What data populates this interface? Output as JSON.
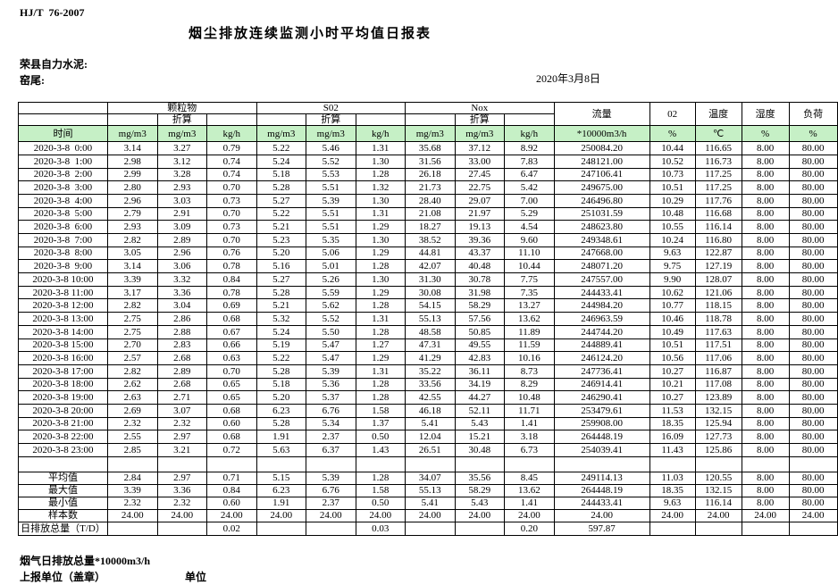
{
  "page": {
    "standard": "HJ/T  76-2007",
    "title": "烟尘排放连续监测小时平均值日报表",
    "company": "荣县自力水泥:",
    "location": "窑尾:",
    "date": "2020年3月8日"
  },
  "colors": {
    "header_row_green": "#c6f0c6",
    "border": "#000000",
    "background": "#ffffff"
  },
  "table": {
    "header": {
      "time": "时间",
      "groups": [
        {
          "label": "颗粒物",
          "sub": "折算"
        },
        {
          "label": "S02",
          "sub": "折算"
        },
        {
          "label": "Nox",
          "sub": "折算"
        }
      ],
      "singles": [
        {
          "label": "流量"
        },
        {
          "label": "02"
        },
        {
          "label": "温度"
        },
        {
          "label": "湿度"
        },
        {
          "label": "负荷"
        }
      ],
      "units": [
        "mg/m3",
        "mg/m3",
        "kg/h",
        "mg/m3",
        "mg/m3",
        "kg/h",
        "mg/m3",
        "mg/m3",
        "kg/h",
        "*10000m3/h",
        "%",
        "℃",
        "%",
        "%"
      ]
    },
    "rows": [
      {
        "time": "2020-3-8  0:00",
        "values": [
          "3.14",
          "3.27",
          "0.79",
          "5.22",
          "5.46",
          "1.31",
          "35.68",
          "37.12",
          "8.92",
          "250084.20",
          "10.44",
          "116.65",
          "8.00",
          "80.00"
        ]
      },
      {
        "time": "2020-3-8  1:00",
        "values": [
          "2.98",
          "3.12",
          "0.74",
          "5.24",
          "5.52",
          "1.30",
          "31.56",
          "33.00",
          "7.83",
          "248121.00",
          "10.52",
          "116.73",
          "8.00",
          "80.00"
        ]
      },
      {
        "time": "2020-3-8  2:00",
        "values": [
          "2.99",
          "3.28",
          "0.74",
          "5.18",
          "5.53",
          "1.28",
          "26.18",
          "27.45",
          "6.47",
          "247106.41",
          "10.73",
          "117.25",
          "8.00",
          "80.00"
        ]
      },
      {
        "time": "2020-3-8  3:00",
        "values": [
          "2.80",
          "2.93",
          "0.70",
          "5.28",
          "5.51",
          "1.32",
          "21.73",
          "22.75",
          "5.42",
          "249675.00",
          "10.51",
          "117.25",
          "8.00",
          "80.00"
        ]
      },
      {
        "time": "2020-3-8  4:00",
        "values": [
          "2.96",
          "3.03",
          "0.73",
          "5.27",
          "5.39",
          "1.30",
          "28.40",
          "29.07",
          "7.00",
          "246496.80",
          "10.29",
          "117.76",
          "8.00",
          "80.00"
        ]
      },
      {
        "time": "2020-3-8  5:00",
        "values": [
          "2.79",
          "2.91",
          "0.70",
          "5.22",
          "5.51",
          "1.31",
          "21.08",
          "21.97",
          "5.29",
          "251031.59",
          "10.48",
          "116.68",
          "8.00",
          "80.00"
        ]
      },
      {
        "time": "2020-3-8  6:00",
        "values": [
          "2.93",
          "3.09",
          "0.73",
          "5.21",
          "5.51",
          "1.29",
          "18.27",
          "19.13",
          "4.54",
          "248623.80",
          "10.55",
          "116.14",
          "8.00",
          "80.00"
        ]
      },
      {
        "time": "2020-3-8  7:00",
        "values": [
          "2.82",
          "2.89",
          "0.70",
          "5.23",
          "5.35",
          "1.30",
          "38.52",
          "39.36",
          "9.60",
          "249348.61",
          "10.24",
          "116.80",
          "8.00",
          "80.00"
        ]
      },
      {
        "time": "2020-3-8  8:00",
        "values": [
          "3.05",
          "2.96",
          "0.76",
          "5.20",
          "5.06",
          "1.29",
          "44.81",
          "43.37",
          "11.10",
          "247668.00",
          "9.63",
          "122.87",
          "8.00",
          "80.00"
        ]
      },
      {
        "time": "2020-3-8  9:00",
        "values": [
          "3.14",
          "3.06",
          "0.78",
          "5.16",
          "5.01",
          "1.28",
          "42.07",
          "40.48",
          "10.44",
          "248071.20",
          "9.75",
          "127.19",
          "8.00",
          "80.00"
        ]
      },
      {
        "time": "2020-3-8 10:00",
        "values": [
          "3.39",
          "3.32",
          "0.84",
          "5.27",
          "5.26",
          "1.30",
          "31.30",
          "30.78",
          "7.75",
          "247557.00",
          "9.90",
          "128.07",
          "8.00",
          "80.00"
        ]
      },
      {
        "time": "2020-3-8 11:00",
        "values": [
          "3.17",
          "3.36",
          "0.78",
          "5.28",
          "5.59",
          "1.29",
          "30.08",
          "31.98",
          "7.35",
          "244433.41",
          "10.62",
          "121.06",
          "8.00",
          "80.00"
        ]
      },
      {
        "time": "2020-3-8 12:00",
        "values": [
          "2.82",
          "3.04",
          "0.69",
          "5.21",
          "5.62",
          "1.28",
          "54.15",
          "58.29",
          "13.27",
          "244984.20",
          "10.77",
          "118.15",
          "8.00",
          "80.00"
        ]
      },
      {
        "time": "2020-3-8 13:00",
        "values": [
          "2.75",
          "2.86",
          "0.68",
          "5.32",
          "5.52",
          "1.31",
          "55.13",
          "57.56",
          "13.62",
          "246963.59",
          "10.46",
          "118.78",
          "8.00",
          "80.00"
        ]
      },
      {
        "time": "2020-3-8 14:00",
        "values": [
          "2.75",
          "2.88",
          "0.67",
          "5.24",
          "5.50",
          "1.28",
          "48.58",
          "50.85",
          "11.89",
          "244744.20",
          "10.49",
          "117.63",
          "8.00",
          "80.00"
        ]
      },
      {
        "time": "2020-3-8 15:00",
        "values": [
          "2.70",
          "2.83",
          "0.66",
          "5.19",
          "5.47",
          "1.27",
          "47.31",
          "49.55",
          "11.59",
          "244889.41",
          "10.51",
          "117.51",
          "8.00",
          "80.00"
        ]
      },
      {
        "time": "2020-3-8 16:00",
        "values": [
          "2.57",
          "2.68",
          "0.63",
          "5.22",
          "5.47",
          "1.29",
          "41.29",
          "42.83",
          "10.16",
          "246124.20",
          "10.56",
          "117.06",
          "8.00",
          "80.00"
        ]
      },
      {
        "time": "2020-3-8 17:00",
        "values": [
          "2.82",
          "2.89",
          "0.70",
          "5.28",
          "5.39",
          "1.31",
          "35.22",
          "36.11",
          "8.73",
          "247736.41",
          "10.27",
          "116.87",
          "8.00",
          "80.00"
        ]
      },
      {
        "time": "2020-3-8 18:00",
        "values": [
          "2.62",
          "2.68",
          "0.65",
          "5.18",
          "5.36",
          "1.28",
          "33.56",
          "34.19",
          "8.29",
          "246914.41",
          "10.21",
          "117.08",
          "8.00",
          "80.00"
        ]
      },
      {
        "time": "2020-3-8 19:00",
        "values": [
          "2.63",
          "2.71",
          "0.65",
          "5.20",
          "5.37",
          "1.28",
          "42.55",
          "44.27",
          "10.48",
          "246290.41",
          "10.27",
          "123.89",
          "8.00",
          "80.00"
        ]
      },
      {
        "time": "2020-3-8 20:00",
        "values": [
          "2.69",
          "3.07",
          "0.68",
          "6.23",
          "6.76",
          "1.58",
          "46.18",
          "52.11",
          "11.71",
          "253479.61",
          "11.53",
          "132.15",
          "8.00",
          "80.00"
        ]
      },
      {
        "time": "2020-3-8 21:00",
        "values": [
          "2.32",
          "2.32",
          "0.60",
          "5.28",
          "5.34",
          "1.37",
          "5.41",
          "5.43",
          "1.41",
          "259908.00",
          "18.35",
          "125.94",
          "8.00",
          "80.00"
        ]
      },
      {
        "time": "2020-3-8 22:00",
        "values": [
          "2.55",
          "2.97",
          "0.68",
          "1.91",
          "2.37",
          "0.50",
          "12.04",
          "15.21",
          "3.18",
          "264448.19",
          "16.09",
          "127.73",
          "8.00",
          "80.00"
        ]
      },
      {
        "time": "2020-3-8 23:00",
        "values": [
          "2.85",
          "3.21",
          "0.72",
          "5.63",
          "6.37",
          "1.43",
          "26.51",
          "30.48",
          "6.73",
          "254039.41",
          "11.43",
          "125.86",
          "8.00",
          "80.00"
        ]
      }
    ],
    "summary": [
      {
        "label": "平均值",
        "values": [
          "2.84",
          "2.97",
          "0.71",
          "5.15",
          "5.39",
          "1.28",
          "34.07",
          "35.56",
          "8.45",
          "249114.13",
          "11.03",
          "120.55",
          "8.00",
          "80.00"
        ]
      },
      {
        "label": "最大值",
        "values": [
          "3.39",
          "3.36",
          "0.84",
          "6.23",
          "6.76",
          "1.58",
          "55.13",
          "58.29",
          "13.62",
          "264448.19",
          "18.35",
          "132.15",
          "8.00",
          "80.00"
        ]
      },
      {
        "label": "最小值",
        "values": [
          "2.32",
          "2.32",
          "0.60",
          "1.91",
          "2.37",
          "0.50",
          "5.41",
          "5.43",
          "1.41",
          "244433.41",
          "9.63",
          "116.14",
          "8.00",
          "80.00"
        ]
      },
      {
        "label": "样本数",
        "values": [
          "24.00",
          "24.00",
          "24.00",
          "24.00",
          "24.00",
          "24.00",
          "24.00",
          "24.00",
          "24.00",
          "24.00",
          "24.00",
          "24.00",
          "24.00",
          "24.00"
        ]
      },
      {
        "label": "日排放总量（T/D）",
        "values": [
          "",
          "",
          "0.02",
          "",
          "",
          "0.03",
          "",
          "",
          "0.20",
          "597.87",
          "",
          "",
          "",
          ""
        ]
      }
    ]
  },
  "footer": {
    "note": "烟气日排放总量*10000m3/h",
    "report_unit": "上报单位（盖章）",
    "unit_label": "单位"
  }
}
